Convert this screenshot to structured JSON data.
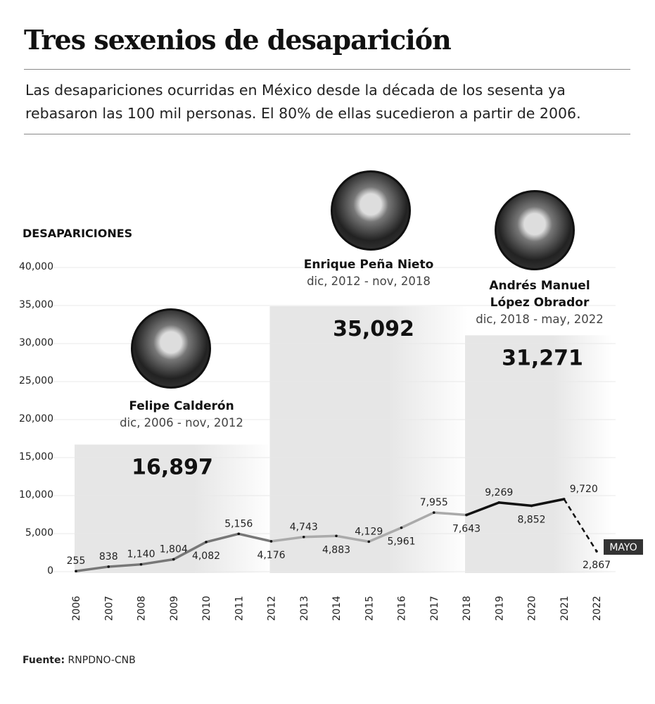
{
  "title": "Tres sexenios de desaparición",
  "subtitle": "Las desapariciones ocurridas en México desde la década de los sesenta ya rebasaron las 100 mil personas. El 80% de ellas sucedieron a partir de 2006.",
  "source_label": "Fuente:",
  "source": "RNPDNO-CNB",
  "presidents": [
    {
      "name": "Felipe Calderón",
      "period": "dic, 2006 - nov, 2012",
      "total": "16,897"
    },
    {
      "name": "Enrique Peña Nieto",
      "period": "dic, 2012 - nov, 2018",
      "total": "35,092"
    },
    {
      "name": "Andrés Manuel López Obrador",
      "name_line1": "Andrés Manuel",
      "name_line2": "López Obrador",
      "period": "dic, 2018 - may, 2022",
      "total": "31,271"
    }
  ],
  "chart_data": {
    "type": "line",
    "ylabel": "DESAPARICIONES",
    "ylim": [
      0,
      40000
    ],
    "yticks": [
      0,
      5000,
      10000,
      15000,
      20000,
      25000,
      30000,
      35000,
      40000
    ],
    "ytick_labels": [
      "0",
      "5,000",
      "10,000",
      "15,000",
      "20,000",
      "25,000",
      "30,000",
      "35,000",
      "40,000"
    ],
    "x": [
      "2006",
      "2007",
      "2008",
      "2009",
      "2010",
      "2011",
      "2012",
      "2013",
      "2014",
      "2015",
      "2016",
      "2017",
      "2018",
      "2019",
      "2020",
      "2021",
      "2022"
    ],
    "values": [
      255,
      838,
      1140,
      1804,
      4082,
      5156,
      4176,
      4743,
      4883,
      4129,
      5961,
      7955,
      7643,
      9269,
      8852,
      9720,
      2867
    ],
    "value_labels": [
      "255",
      "838",
      "1,140",
      "1,804",
      "4,082",
      "5,156",
      "4,176",
      "4,743",
      "4,883",
      "4,129",
      "5,961",
      "7,955",
      "7,643",
      "9,269",
      "8,852",
      "9,720",
      "2,867"
    ],
    "annotation": "MAYO",
    "periods": [
      {
        "start": "2006",
        "end": "2012",
        "total": 16897,
        "color": "#777777"
      },
      {
        "start": "2012",
        "end": "2018",
        "total": 35092,
        "color": "#aaaaaa"
      },
      {
        "start": "2018",
        "end": "2022",
        "total": 31271,
        "color": "#111111"
      }
    ]
  }
}
